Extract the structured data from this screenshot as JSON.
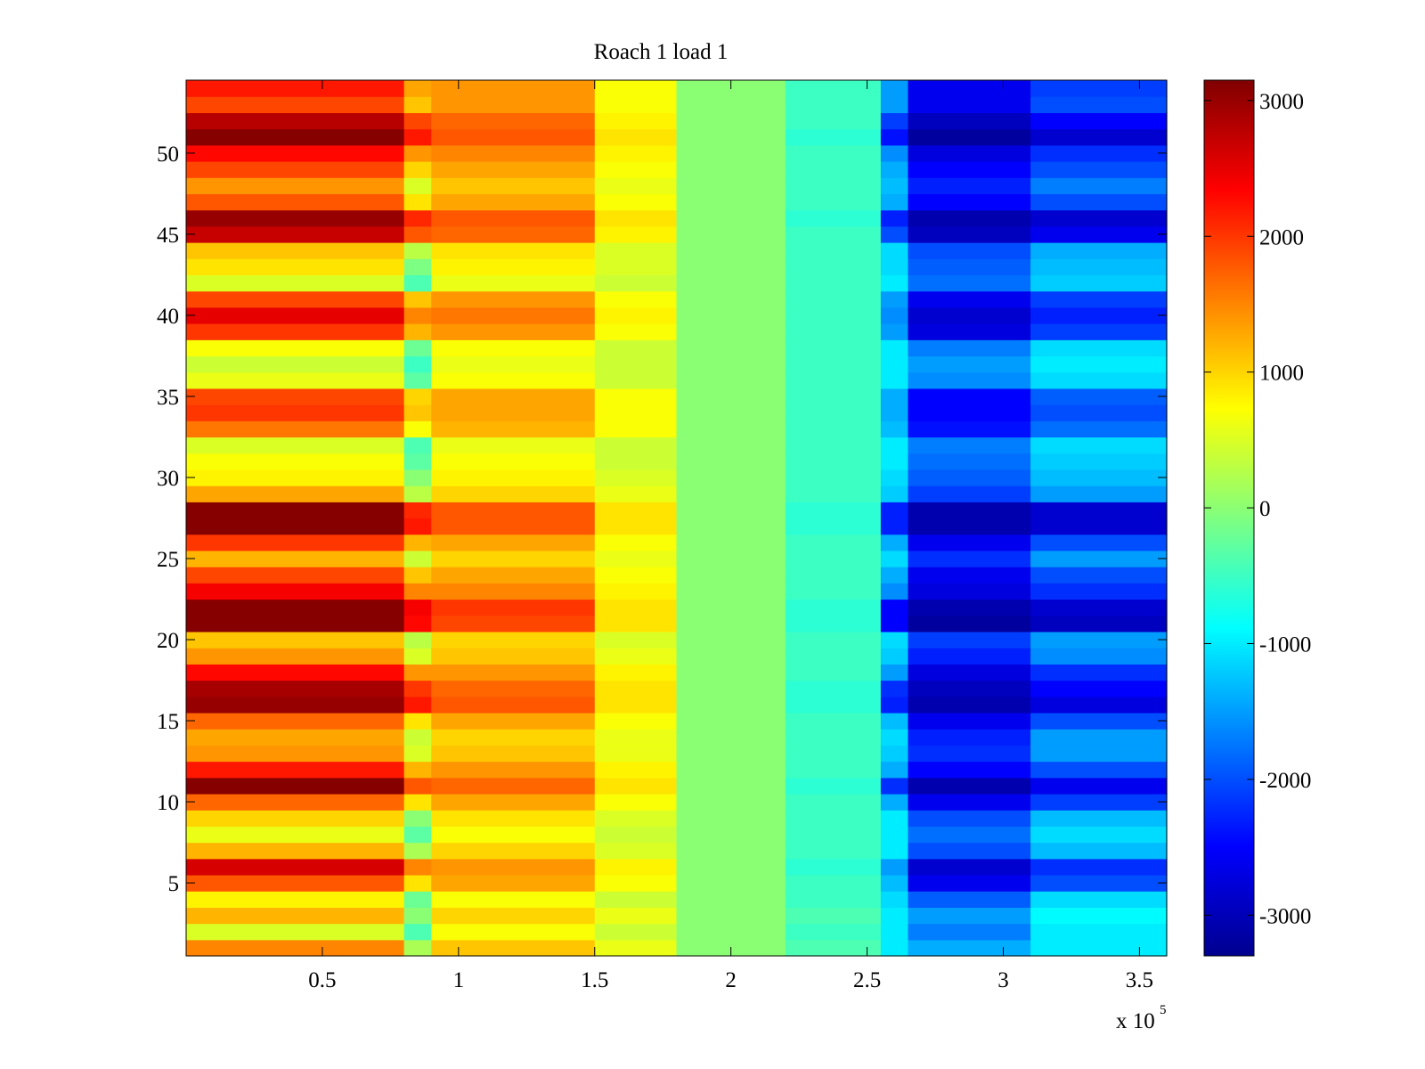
{
  "chart_data": {
    "type": "heatmap",
    "title": "Roach 1 load 1",
    "xlabel": "",
    "ylabel": "",
    "x_multiplier_label": "x 10",
    "x_multiplier_exponent": "5",
    "x_multiplier": 100000,
    "xlim": [
      0,
      3.6
    ],
    "ylim": [
      0.5,
      54.5
    ],
    "x_ticks": [
      0.5,
      1,
      1.5,
      2,
      2.5,
      3,
      3.5
    ],
    "x_tick_labels": [
      "0.5",
      "1",
      "1.5",
      "2",
      "2.5",
      "3",
      "3.5"
    ],
    "y_ticks": [
      5,
      10,
      15,
      20,
      25,
      30,
      35,
      40,
      45,
      50
    ],
    "y_tick_labels": [
      "5",
      "10",
      "15",
      "20",
      "25",
      "30",
      "35",
      "40",
      "45",
      "50"
    ],
    "colormap": "jet",
    "colorbar": {
      "limits": [
        -3300,
        3150
      ],
      "ticks": [
        -3000,
        -2000,
        -1000,
        0,
        1000,
        2000,
        3000
      ],
      "tick_labels": [
        "-3000",
        "-2000",
        "-1000",
        "0",
        "1000",
        "2000",
        "3000"
      ],
      "placement": "right"
    },
    "row_count": 54,
    "segment_x_edges": [
      0,
      0.8,
      0.9,
      1.5,
      1.8,
      2.2,
      2.55,
      2.65,
      3.1,
      3.6
    ],
    "segment_values_by_row": [
      [
        1500,
        200,
        1100,
        600,
        0,
        -400,
        -1000,
        -1400,
        -1000
      ],
      [
        500,
        -400,
        700,
        400,
        0,
        -500,
        -1000,
        -1700,
        -1000
      ],
      [
        1200,
        0,
        1000,
        600,
        0,
        -400,
        -1000,
        -1500,
        -900
      ],
      [
        800,
        -200,
        700,
        400,
        0,
        -500,
        -1100,
        -1900,
        -1100
      ],
      [
        1800,
        900,
        1300,
        700,
        0,
        -500,
        -1300,
        -2600,
        -2000
      ],
      [
        2600,
        1500,
        1400,
        800,
        0,
        -600,
        -1500,
        -2800,
        -2200
      ],
      [
        1200,
        200,
        1000,
        500,
        0,
        -500,
        -1000,
        -2000,
        -1300
      ],
      [
        600,
        -300,
        700,
        400,
        0,
        -500,
        -1000,
        -1800,
        -1100
      ],
      [
        1000,
        0,
        900,
        500,
        0,
        -500,
        -1000,
        -2000,
        -1300
      ],
      [
        1700,
        900,
        1300,
        700,
        0,
        -500,
        -1400,
        -2600,
        -2100
      ],
      [
        3100,
        1800,
        1700,
        900,
        0,
        -600,
        -2200,
        -3000,
        -2600
      ],
      [
        2200,
        1200,
        1400,
        800,
        0,
        -500,
        -1400,
        -2500,
        -2000
      ],
      [
        1400,
        500,
        1100,
        600,
        0,
        -500,
        -1200,
        -2200,
        -1500
      ],
      [
        1300,
        400,
        1000,
        600,
        0,
        -500,
        -1100,
        -2300,
        -1500
      ],
      [
        1700,
        900,
        1300,
        700,
        0,
        -500,
        -1300,
        -2600,
        -2000
      ],
      [
        3000,
        2200,
        1800,
        900,
        0,
        -600,
        -2300,
        -3000,
        -2700
      ],
      [
        2900,
        2000,
        1700,
        900,
        0,
        -600,
        -2200,
        -2900,
        -2500
      ],
      [
        2300,
        1400,
        1400,
        800,
        0,
        -500,
        -1500,
        -2700,
        -2200
      ],
      [
        1400,
        500,
        1100,
        600,
        0,
        -500,
        -1200,
        -2300,
        -1600
      ],
      [
        1100,
        300,
        1000,
        500,
        0,
        -500,
        -1100,
        -2100,
        -1500
      ],
      [
        3100,
        2300,
        1900,
        900,
        0,
        -600,
        -2500,
        -3100,
        -2900
      ],
      [
        3100,
        2400,
        2000,
        900,
        0,
        -600,
        -2500,
        -3000,
        -2800
      ],
      [
        2400,
        1500,
        1500,
        800,
        0,
        -500,
        -1600,
        -2700,
        -2200
      ],
      [
        1900,
        1100,
        1300,
        700,
        0,
        -500,
        -1400,
        -2600,
        -2000
      ],
      [
        1200,
        400,
        1000,
        600,
        0,
        -500,
        -1100,
        -2200,
        -1500
      ],
      [
        2000,
        1200,
        1300,
        700,
        0,
        -500,
        -1400,
        -2600,
        -2000
      ],
      [
        3100,
        2200,
        1800,
        900,
        0,
        -600,
        -2300,
        -3000,
        -2800
      ],
      [
        3100,
        2100,
        1800,
        900,
        0,
        -600,
        -2300,
        -3000,
        -2800
      ],
      [
        1300,
        300,
        1000,
        600,
        0,
        -500,
        -1200,
        -2100,
        -1500
      ],
      [
        800,
        0,
        800,
        500,
        0,
        -500,
        -1100,
        -1900,
        -1300
      ],
      [
        700,
        -300,
        700,
        400,
        0,
        -500,
        -1000,
        -1800,
        -1200
      ],
      [
        500,
        -400,
        600,
        400,
        0,
        -500,
        -1000,
        -1700,
        -1100
      ],
      [
        1600,
        700,
        1200,
        700,
        0,
        -500,
        -1300,
        -2400,
        -1800
      ],
      [
        2000,
        1100,
        1300,
        700,
        0,
        -500,
        -1400,
        -2500,
        -2000
      ],
      [
        1900,
        1000,
        1300,
        700,
        0,
        -500,
        -1400,
        -2500,
        -1900
      ],
      [
        600,
        -300,
        700,
        400,
        0,
        -500,
        -1000,
        -1600,
        -1100
      ],
      [
        400,
        -500,
        600,
        400,
        0,
        -500,
        -1000,
        -1500,
        -1000
      ],
      [
        700,
        -200,
        700,
        400,
        0,
        -500,
        -1000,
        -1700,
        -1100
      ],
      [
        2000,
        1200,
        1400,
        700,
        0,
        -500,
        -1500,
        -2700,
        -2100
      ],
      [
        2500,
        1500,
        1600,
        800,
        0,
        -500,
        -1600,
        -2800,
        -2300
      ],
      [
        1900,
        1100,
        1400,
        700,
        0,
        -500,
        -1500,
        -2600,
        -2100
      ],
      [
        500,
        -400,
        600,
        400,
        0,
        -500,
        -1000,
        -1800,
        -1200
      ],
      [
        900,
        -100,
        800,
        500,
        0,
        -500,
        -1100,
        -1900,
        -1300
      ],
      [
        1100,
        300,
        900,
        500,
        0,
        -500,
        -1100,
        -2000,
        -1400
      ],
      [
        2700,
        1800,
        1700,
        800,
        0,
        -500,
        -2000,
        -2900,
        -2600
      ],
      [
        3000,
        2100,
        1800,
        900,
        0,
        -600,
        -2300,
        -3000,
        -2800
      ],
      [
        1800,
        900,
        1300,
        700,
        0,
        -500,
        -1400,
        -2500,
        -2000
      ],
      [
        1400,
        500,
        1100,
        600,
        0,
        -500,
        -1300,
        -2300,
        -1700
      ],
      [
        1900,
        1000,
        1300,
        700,
        0,
        -500,
        -1400,
        -2500,
        -2000
      ],
      [
        2300,
        1400,
        1500,
        800,
        0,
        -500,
        -1600,
        -2700,
        -2200
      ],
      [
        3100,
        2200,
        1800,
        900,
        0,
        -600,
        -2400,
        -3100,
        -2800
      ],
      [
        2800,
        1900,
        1700,
        800,
        0,
        -500,
        -2100,
        -2900,
        -2500
      ],
      [
        1900,
        1100,
        1400,
        700,
        0,
        -500,
        -1500,
        -2600,
        -2000
      ],
      [
        2200,
        1300,
        1400,
        700,
        0,
        -500,
        -1500,
        -2600,
        -2100
      ]
    ]
  }
}
